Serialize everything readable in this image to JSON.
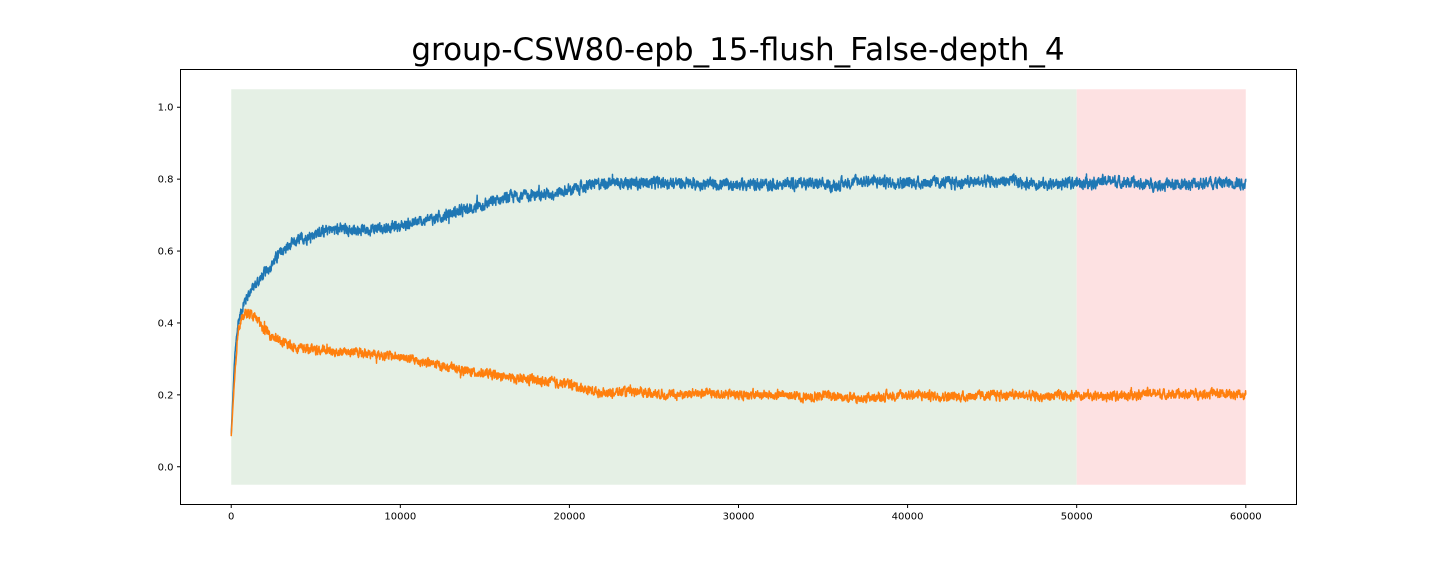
{
  "chart_data": {
    "type": "line",
    "title": "group-CSW80-epb_15-flush_False-depth_4",
    "xlabel": "",
    "ylabel": "",
    "xlim": [
      -3000,
      63000
    ],
    "ylim": [
      -0.105,
      1.105
    ],
    "grid": false,
    "legend": "none",
    "xticks": [
      0,
      10000,
      20000,
      30000,
      40000,
      50000,
      60000
    ],
    "xtick_labels": [
      "0",
      "10000",
      "20000",
      "30000",
      "40000",
      "50000",
      "60000"
    ],
    "yticks": [
      0.0,
      0.2,
      0.4,
      0.6,
      0.8,
      1.0
    ],
    "ytick_labels": [
      "0.0",
      "0.2",
      "0.4",
      "0.6",
      "0.8",
      "1.0"
    ],
    "shaded_regions": [
      {
        "x_start": 0,
        "x_end": 50000,
        "y_start": -0.05,
        "y_end": 1.05,
        "color": "#e5f0e5"
      },
      {
        "x_start": 50000,
        "x_end": 60000,
        "y_start": -0.05,
        "y_end": 1.05,
        "color": "#fde1e2"
      }
    ],
    "series": [
      {
        "color": "#1f77b4",
        "noise": 0.012,
        "x": [
          0,
          200,
          400,
          700,
          1000,
          1500,
          2000,
          3000,
          4000,
          5000,
          6000,
          7000,
          8000,
          9000,
          10000,
          11000,
          12000,
          13000,
          14000,
          15000,
          16000,
          17000,
          18000,
          19000,
          20000,
          21000,
          22000,
          24000,
          26000,
          28000,
          30000,
          32000,
          34000,
          35500,
          37000,
          40000,
          43000,
          46000,
          48000,
          50000,
          52000,
          54000,
          56000,
          58000,
          60000
        ],
        "y": [
          0.09,
          0.3,
          0.4,
          0.45,
          0.48,
          0.51,
          0.54,
          0.6,
          0.63,
          0.65,
          0.66,
          0.66,
          0.66,
          0.665,
          0.67,
          0.68,
          0.69,
          0.705,
          0.715,
          0.73,
          0.745,
          0.755,
          0.755,
          0.76,
          0.77,
          0.78,
          0.79,
          0.79,
          0.79,
          0.785,
          0.785,
          0.785,
          0.79,
          0.78,
          0.795,
          0.79,
          0.79,
          0.795,
          0.785,
          0.79,
          0.795,
          0.785,
          0.785,
          0.79,
          0.79
        ]
      },
      {
        "color": "#ff7f0e",
        "noise": 0.01,
        "x": [
          0,
          200,
          400,
          700,
          1000,
          1500,
          2000,
          3000,
          4000,
          5000,
          6000,
          7000,
          8000,
          9000,
          10000,
          11000,
          12000,
          13000,
          14000,
          15000,
          16000,
          17000,
          18000,
          19000,
          20000,
          21000,
          22000,
          24000,
          26000,
          28000,
          30000,
          32000,
          34000,
          35500,
          37000,
          40000,
          43000,
          46000,
          48000,
          50000,
          52000,
          54000,
          56000,
          58000,
          60000
        ],
        "y": [
          0.085,
          0.25,
          0.38,
          0.42,
          0.43,
          0.41,
          0.38,
          0.345,
          0.33,
          0.325,
          0.32,
          0.32,
          0.315,
          0.31,
          0.305,
          0.295,
          0.285,
          0.275,
          0.265,
          0.26,
          0.25,
          0.245,
          0.24,
          0.235,
          0.23,
          0.215,
          0.205,
          0.21,
          0.2,
          0.205,
          0.2,
          0.2,
          0.195,
          0.2,
          0.19,
          0.2,
          0.195,
          0.2,
          0.195,
          0.2,
          0.195,
          0.205,
          0.2,
          0.205,
          0.2
        ]
      }
    ]
  }
}
